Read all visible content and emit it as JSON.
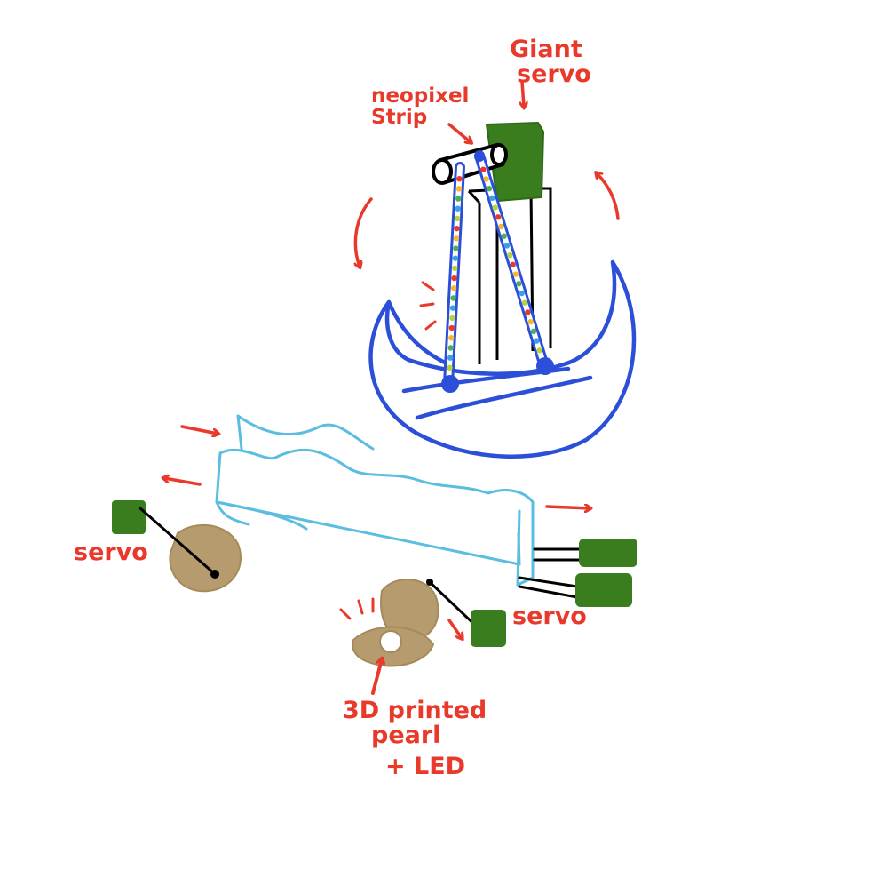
{
  "labels": {
    "giant_servo": [
      "Giant",
      "servo"
    ],
    "neopixel_strip": [
      "neopixel",
      "Strip"
    ],
    "servo_left": "servo",
    "servo_right": "servo",
    "pearl": [
      "3D printed",
      "pearl",
      "+ LED"
    ]
  },
  "colors": {
    "annotation": "#e8392b",
    "boat_outline": "#2b4fd8",
    "waves_outline": "#5bbde0",
    "servo_green": "#3a7d1f",
    "shell_tan": "#b59b6d",
    "ink": "#000000"
  },
  "led_colors": [
    "#e8392b",
    "#f5b82e",
    "#4caf50",
    "#3aa0e8",
    "#b5d33a"
  ],
  "icons": [
    "servo-icon",
    "shell-icon",
    "arrow-icon",
    "neopixel-strip-icon"
  ]
}
